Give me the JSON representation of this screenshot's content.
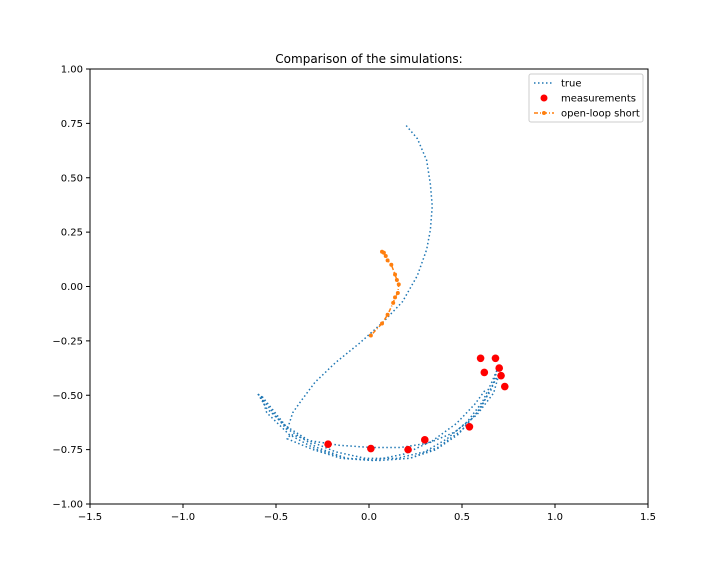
{
  "chart_data": {
    "type": "line",
    "title": "Comparison of the simulations:",
    "xlabel": "",
    "ylabel": "",
    "xlim": [
      -1.5,
      1.5
    ],
    "ylim": [
      -1.0,
      1.0
    ],
    "xticks": [
      "−1.5",
      "−1.0",
      "−0.5",
      "0.0",
      "0.5",
      "1.0",
      "1.5"
    ],
    "yticks": [
      "1.00",
      "0.75",
      "0.50",
      "0.25",
      "0.00",
      "−0.25",
      "−0.50",
      "−0.75",
      "−1.00"
    ],
    "xtick_values": [
      -1.5,
      -1.0,
      -0.5,
      0.0,
      0.5,
      1.0,
      1.5
    ],
    "ytick_values": [
      1.0,
      0.75,
      0.5,
      0.25,
      0.0,
      -0.25,
      -0.5,
      -0.75,
      -1.0
    ],
    "grid": false,
    "legend_position": "top-right",
    "series": [
      {
        "name": "true",
        "style": "dotted",
        "color": "#1f77b4",
        "x": [
          0.2,
          0.26,
          0.31,
          0.33,
          0.34,
          0.33,
          0.31,
          0.26,
          0.18,
          0.08,
          -0.05,
          -0.18,
          -0.29,
          -0.36,
          -0.41,
          -0.44,
          -0.6,
          -0.55,
          -0.45,
          -0.32,
          -0.18,
          -0.02,
          0.15,
          0.3,
          0.42,
          0.53,
          0.61,
          0.66,
          0.69,
          0.66,
          0.58,
          0.48,
          0.36,
          0.22,
          0.05,
          -0.12,
          -0.28,
          -0.43,
          -0.58,
          -0.55,
          -0.43,
          -0.28,
          -0.12,
          0.05,
          0.22,
          0.37,
          0.5,
          0.6,
          0.66,
          0.7,
          0.67,
          0.58,
          0.46,
          0.32,
          0.17,
          0.01,
          -0.16,
          -0.31,
          -0.42,
          -0.44,
          -0.3,
          -0.15,
          0.02,
          0.19,
          0.34,
          0.47,
          0.57,
          0.63
        ],
        "y": [
          0.74,
          0.68,
          0.58,
          0.47,
          0.37,
          0.26,
          0.17,
          0.05,
          -0.07,
          -0.16,
          -0.26,
          -0.35,
          -0.44,
          -0.52,
          -0.58,
          -0.66,
          -0.49,
          -0.56,
          -0.64,
          -0.71,
          -0.76,
          -0.79,
          -0.79,
          -0.76,
          -0.7,
          -0.62,
          -0.53,
          -0.44,
          -0.38,
          -0.47,
          -0.58,
          -0.68,
          -0.75,
          -0.79,
          -0.8,
          -0.79,
          -0.74,
          -0.66,
          -0.5,
          -0.58,
          -0.68,
          -0.75,
          -0.79,
          -0.8,
          -0.79,
          -0.74,
          -0.66,
          -0.56,
          -0.46,
          -0.4,
          -0.49,
          -0.59,
          -0.67,
          -0.72,
          -0.74,
          -0.74,
          -0.73,
          -0.71,
          -0.68,
          -0.7,
          -0.75,
          -0.79,
          -0.8,
          -0.77,
          -0.71,
          -0.63,
          -0.54,
          -0.47
        ]
      },
      {
        "name": "measurements",
        "style": "markers",
        "color": "#ff0000",
        "x": [
          0.68,
          0.6,
          0.7,
          0.62,
          0.71,
          0.73,
          0.54,
          0.3,
          0.21,
          0.01,
          -0.22
        ],
        "y": [
          -0.33,
          -0.33,
          -0.375,
          -0.395,
          -0.41,
          -0.46,
          -0.645,
          -0.705,
          -0.75,
          -0.745,
          -0.725
        ]
      },
      {
        "name": "open-loop short",
        "style": "dashdot-markers",
        "color": "#ff7f0e",
        "x": [
          0.07,
          0.08,
          0.09,
          0.1,
          0.12,
          0.14,
          0.15,
          0.16,
          0.155,
          0.14,
          0.13,
          0.1,
          0.07,
          0.01
        ],
        "y": [
          0.16,
          0.155,
          0.14,
          0.12,
          0.1,
          0.055,
          0.03,
          0.01,
          -0.03,
          -0.05,
          -0.075,
          -0.13,
          -0.17,
          -0.225
        ]
      }
    ]
  }
}
